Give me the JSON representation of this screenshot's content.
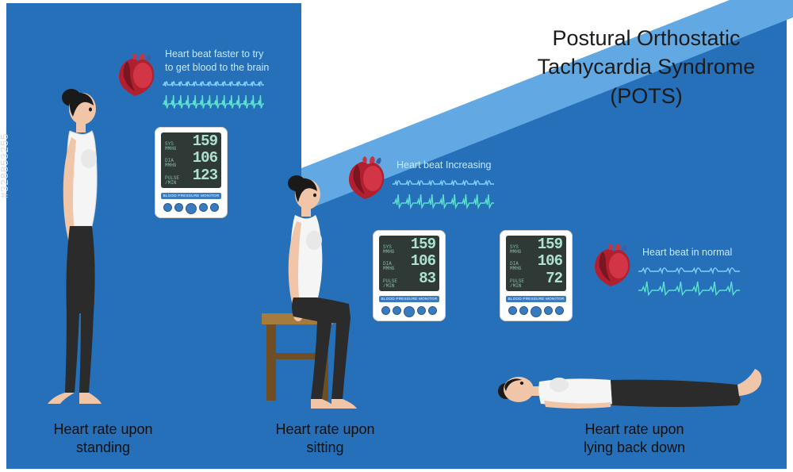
{
  "meta": {
    "watermark": "#328853255",
    "background_color": "#2570b8",
    "banner_color": "#62a9e3",
    "text_color": "#111111",
    "mini_text_color": "#c9e8ff"
  },
  "title": {
    "line1": "Postural Orthostatic",
    "line2": "Tachycardia Syndrome",
    "line3": "(POTS)",
    "fontsize": 27
  },
  "positions": {
    "standing": {
      "caption_line1": "Heart rate upon",
      "caption_line2": "standing",
      "heart_caption_line1": "Heart beat faster to try",
      "heart_caption_line2": "to get blood to the brain",
      "monitor": {
        "sys": "159",
        "dia": "106",
        "pulse": "123",
        "label": "BLOOD PRESSURE MONITOR"
      },
      "wave_freq": 14,
      "wave_color_top": "#7fd0ff",
      "wave_color_bottom": "#5ce0d0"
    },
    "sitting": {
      "caption_line1": "Heart rate upon",
      "caption_line2": "sitting",
      "heart_caption": "Heart beat Increasing",
      "monitor": {
        "sys": "159",
        "dia": "106",
        "pulse": "83",
        "label": "BLOOD PRESSURE MONITOR"
      },
      "wave_freq": 9,
      "wave_color_top": "#7fd0ff",
      "wave_color_bottom": "#5ce0d0"
    },
    "lying": {
      "caption_line1": "Heart rate upon",
      "caption_line2": "lying back down",
      "heart_caption": "Heart beat in normal",
      "monitor": {
        "sys": "159",
        "dia": "106",
        "pulse": "72",
        "label": "BLOOD PRESSURE MONITOR"
      },
      "wave_freq": 6,
      "wave_color_top": "#7fd0ff",
      "wave_color_bottom": "#5ce0d0"
    }
  },
  "person": {
    "skin": "#f1c5a7",
    "hair": "#1a1a1a",
    "top": "#f5f5f5",
    "pants": "#2b2b2b",
    "stool_wood": "#a57b3e",
    "stool_dark": "#6f4e24"
  },
  "heart": {
    "main": "#b22030",
    "highlight": "#e04050",
    "dark": "#7a1522",
    "vessel_blue": "#3a5fa8",
    "vessel_red": "#c33545"
  }
}
